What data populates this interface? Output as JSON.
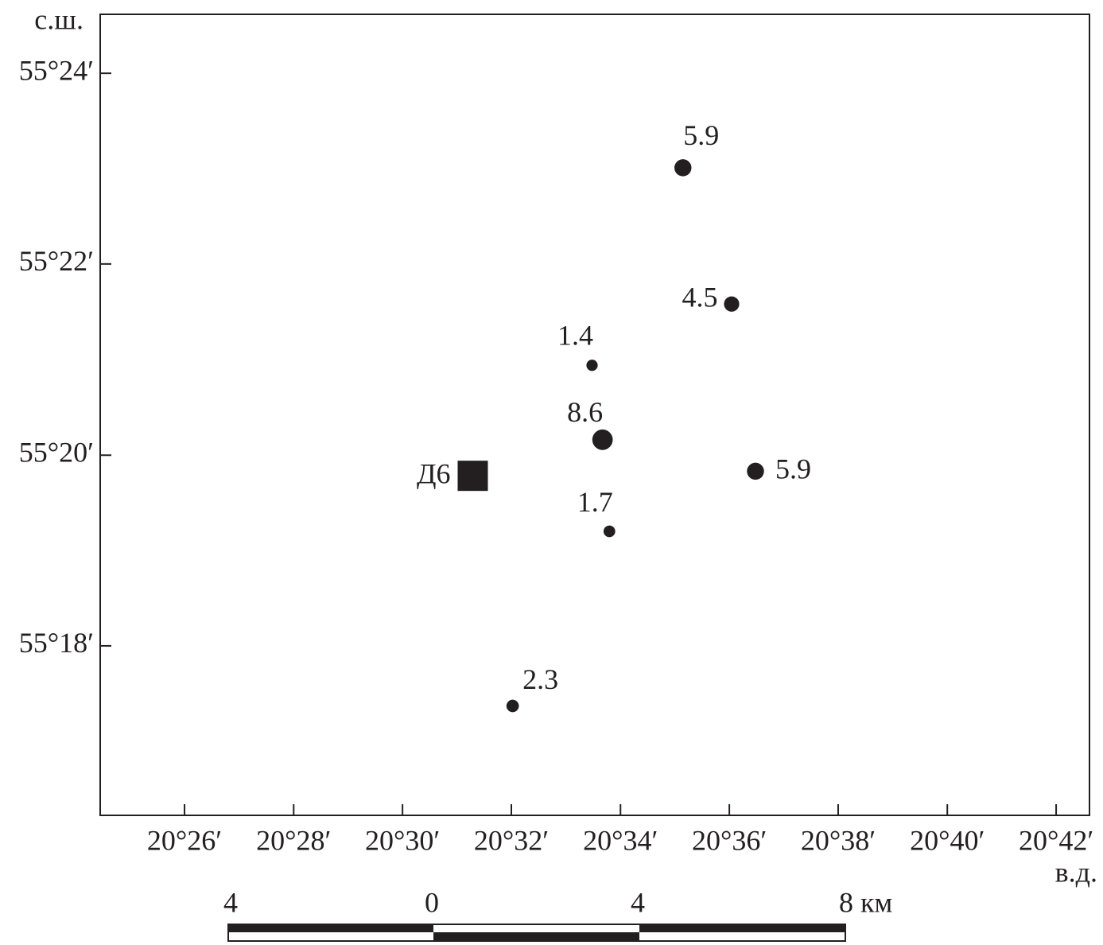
{
  "chart_data": {
    "type": "scatter",
    "x_axis_label": "в.д.",
    "y_axis_label": "с.ш.",
    "xlim": [
      20.4075,
      20.7102
    ],
    "ylim": [
      55.2704,
      55.4103
    ],
    "xticks": [
      {
        "value": 20.4333,
        "label": "20°26′"
      },
      {
        "value": 20.4667,
        "label": "20°28′"
      },
      {
        "value": 20.5,
        "label": "20°30′"
      },
      {
        "value": 20.5333,
        "label": "20°32′"
      },
      {
        "value": 20.5667,
        "label": "20°34′"
      },
      {
        "value": 20.6,
        "label": "20°36′"
      },
      {
        "value": 20.6333,
        "label": "20°38′"
      },
      {
        "value": 20.6667,
        "label": "20°40′"
      },
      {
        "value": 20.7,
        "label": "20°42′"
      }
    ],
    "yticks": [
      {
        "value": 55.4,
        "label": "55°24′"
      },
      {
        "value": 55.3667,
        "label": "55°22′"
      },
      {
        "value": 55.3333,
        "label": "55°20′"
      },
      {
        "value": 55.3,
        "label": "55°18′"
      }
    ],
    "x": [
      20.5858,
      20.6007,
      20.558,
      20.5612,
      20.608,
      20.5633,
      20.5337
    ],
    "y": [
      55.3835,
      55.3597,
      55.349,
      55.336,
      55.3305,
      55.32,
      55.2895
    ],
    "values": [
      5.9,
      4.5,
      1.4,
      8.6,
      5.9,
      1.7,
      2.3
    ],
    "color": "#231f20",
    "station": {
      "label": "Д6",
      "x": 20.5215,
      "y": 55.3297
    },
    "scale_bar": {
      "labels": [
        "4",
        "0",
        "4",
        "8 км"
      ]
    }
  }
}
